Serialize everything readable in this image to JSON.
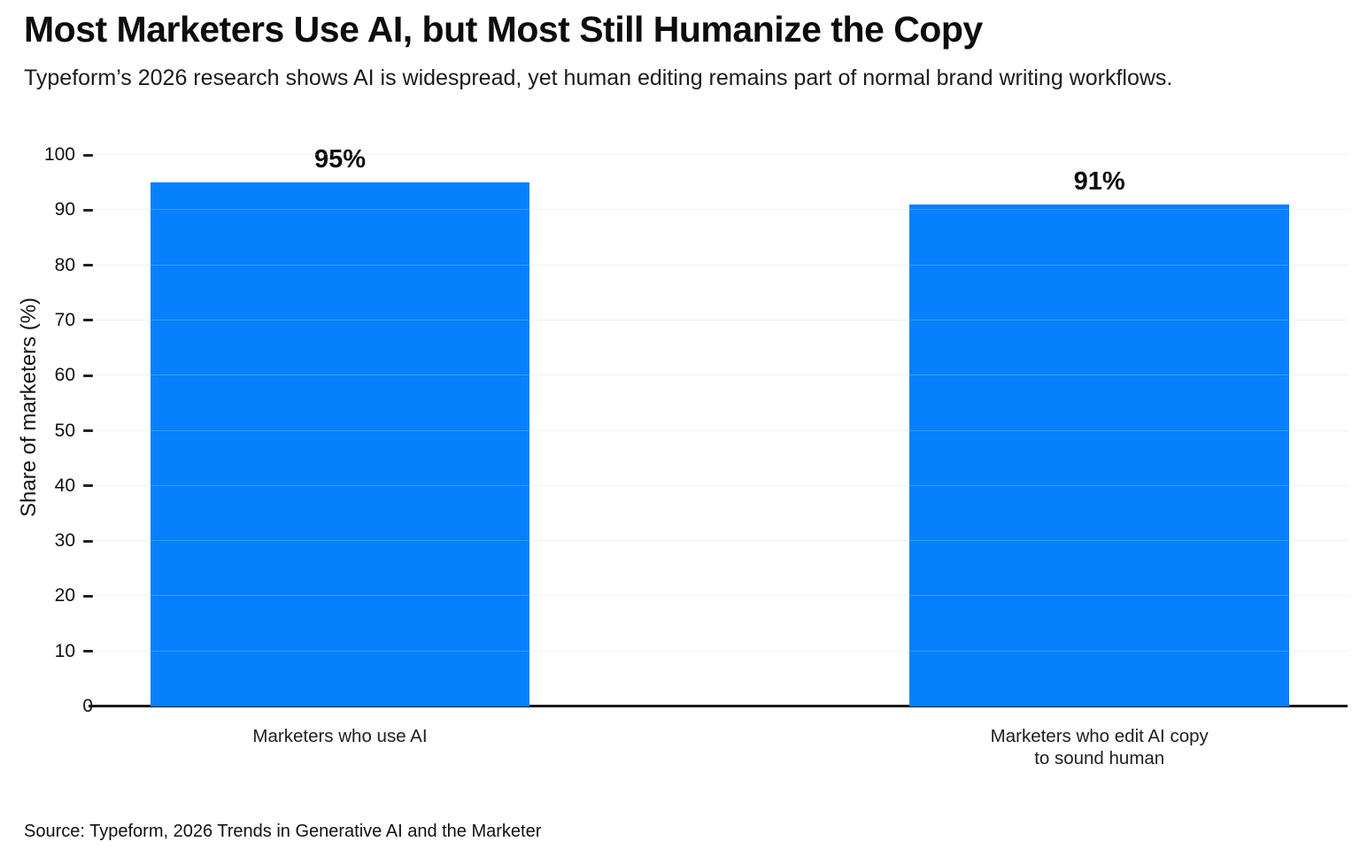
{
  "chart_data": {
    "type": "bar",
    "title": "Most Marketers Use AI, but Most Still Humanize the Copy",
    "subtitle": "Typeform’s 2026 research shows AI is widespread, yet human editing remains part of normal brand writing workflows.",
    "categories": [
      "Marketers who use AI",
      "Marketers who edit AI copy\nto sound human"
    ],
    "values": [
      95,
      91
    ],
    "value_labels": [
      "95%",
      "91%"
    ],
    "xlabel": "",
    "ylabel": "Share of marketers (%)",
    "ylim": [
      0,
      100
    ],
    "yticks": [
      0,
      10,
      20,
      30,
      40,
      50,
      60,
      70,
      80,
      90,
      100
    ],
    "grid": "horizontal",
    "legend": "none",
    "bar_color": "#0680fc",
    "source": "Source: Typeform, 2026 Trends in Generative AI and the Marketer"
  }
}
